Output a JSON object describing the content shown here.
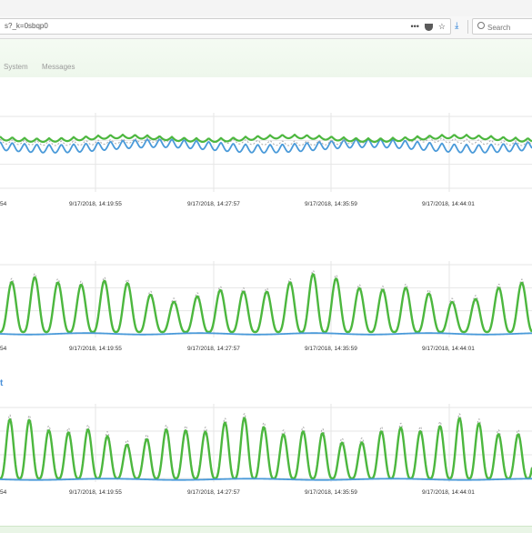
{
  "browser": {
    "url": "s?_k=0sbqp0",
    "search_placeholder": "Search",
    "icons": [
      "more-icon",
      "pocket-icon",
      "star-icon",
      "download-icon",
      "search-icon"
    ]
  },
  "tabs": [
    {
      "label": "System"
    },
    {
      "label": "Messages"
    }
  ],
  "panels": [
    {
      "name": "panel-1",
      "title": "",
      "x_ticks": [
        "54",
        "9/17/2018, 14:19:55",
        "9/17/2018, 14:27:57",
        "9/17/2018, 14:35:59",
        "9/17/2018, 14:44:01"
      ]
    },
    {
      "name": "panel-2",
      "title": "",
      "x_ticks": [
        "54",
        "9/17/2018, 14:19:55",
        "9/17/2018, 14:27:57",
        "9/17/2018, 14:35:59",
        "9/17/2018, 14:44:01"
      ]
    },
    {
      "name": "panel-3",
      "title": "t",
      "x_ticks": [
        "54",
        "9/17/2018, 14:19:55",
        "9/17/2018, 14:27:57",
        "9/17/2018, 14:35:59",
        "9/17/2018, 14:44:01"
      ]
    }
  ],
  "colors": {
    "green": "#4cb73e",
    "blue": "#4a9ad9",
    "gray_dashed": "#aaaaaa",
    "grid": "#e6e6e6"
  }
}
